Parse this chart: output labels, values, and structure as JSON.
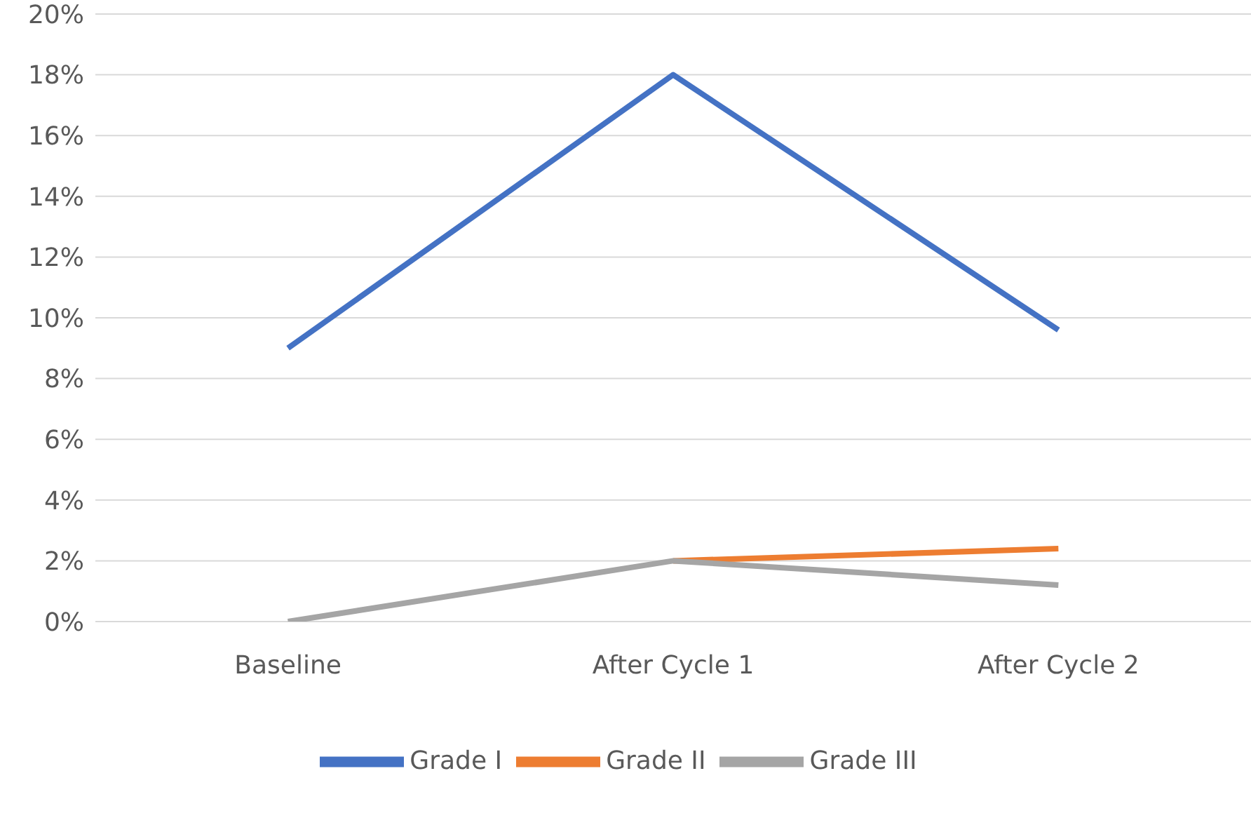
{
  "chart_data": {
    "type": "line",
    "categories": [
      "Baseline",
      "After Cycle 1",
      "After Cycle 2"
    ],
    "series": [
      {
        "name": "Grade I",
        "color": "#4472c4",
        "values": [
          9,
          18,
          9.6
        ]
      },
      {
        "name": "Grade II",
        "color": "#ed7d31",
        "values": [
          null,
          2,
          2.4
        ]
      },
      {
        "name": "Grade III",
        "color": "#a5a5a5",
        "values": [
          0,
          2,
          1.2
        ]
      }
    ],
    "ylim": [
      0,
      20
    ],
    "yticks": [
      {
        "value": 0,
        "label": "0%"
      },
      {
        "value": 2,
        "label": "2%"
      },
      {
        "value": 4,
        "label": "4%"
      },
      {
        "value": 6,
        "label": "6%"
      },
      {
        "value": 8,
        "label": "8%"
      },
      {
        "value": 10,
        "label": "10%"
      },
      {
        "value": 12,
        "label": "12%"
      },
      {
        "value": 14,
        "label": "14%"
      },
      {
        "value": 16,
        "label": "16%"
      },
      {
        "value": 18,
        "label": "18%"
      },
      {
        "value": 20,
        "label": "20%"
      }
    ],
    "grid": "y",
    "legend": "bottom",
    "marker": "none",
    "line_style": "solid"
  }
}
